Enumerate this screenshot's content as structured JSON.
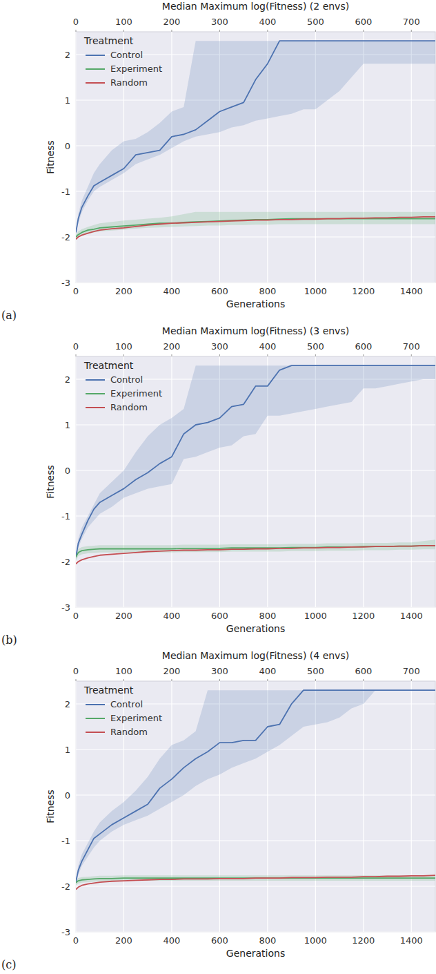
{
  "chart_data": [
    {
      "type": "line",
      "title": "Median Maximum log(Fitness) (2 envs)",
      "panel_label": "(a)",
      "x_label": "Generations",
      "y_label": "Fitness",
      "xlim": [
        0,
        1500
      ],
      "xticks": [
        0,
        200,
        400,
        600,
        800,
        1000,
        1200,
        1400
      ],
      "x2lim": [
        0,
        750
      ],
      "x2ticks": [
        0,
        100,
        200,
        300,
        400,
        500,
        600,
        700
      ],
      "ylim": [
        -3,
        2.5
      ],
      "yticks": [
        -3,
        -2,
        -1,
        0,
        1,
        2
      ],
      "grid": true,
      "legend": "upper left",
      "legend_title": "Treatment",
      "x": [
        0,
        10,
        25,
        50,
        75,
        100,
        150,
        200,
        250,
        300,
        350,
        400,
        450,
        500,
        550,
        600,
        650,
        700,
        750,
        800,
        850,
        900,
        950,
        1000,
        1050,
        1100,
        1150,
        1200,
        1250,
        1300,
        1350,
        1400,
        1450,
        1500
      ],
      "series": [
        {
          "name": "Control",
          "color": "#4c72b0",
          "values": [
            -1.9,
            -1.6,
            -1.35,
            -1.1,
            -0.88,
            -0.8,
            -0.65,
            -0.5,
            -0.2,
            -0.15,
            -0.1,
            0.2,
            0.25,
            0.35,
            0.55,
            0.75,
            0.85,
            0.95,
            1.45,
            1.8,
            2.3,
            2.3,
            2.3,
            2.3,
            2.3,
            2.3,
            2.3,
            2.3,
            2.3,
            2.3,
            2.3,
            2.3,
            2.3,
            2.3
          ],
          "lower": [
            -1.95,
            -1.7,
            -1.45,
            -1.2,
            -1.0,
            -0.9,
            -0.75,
            -0.6,
            -0.4,
            -0.3,
            -0.2,
            -0.05,
            0.1,
            0.2,
            0.25,
            0.3,
            0.4,
            0.45,
            0.55,
            0.6,
            0.65,
            0.7,
            0.8,
            0.8,
            1.0,
            1.2,
            1.5,
            1.8,
            1.8,
            1.8,
            1.8,
            1.8,
            1.8,
            1.8
          ],
          "upper": [
            -1.85,
            -1.5,
            -1.2,
            -0.9,
            -0.6,
            -0.4,
            -0.1,
            0.1,
            0.15,
            0.3,
            0.5,
            0.75,
            0.85,
            2.3,
            2.3,
            2.3,
            2.3,
            2.3,
            2.3,
            2.3,
            2.3,
            2.3,
            2.3,
            2.3,
            2.3,
            2.3,
            2.3,
            2.3,
            2.3,
            2.3,
            2.3,
            2.3,
            2.3,
            2.3
          ]
        },
        {
          "name": "Experiment",
          "color": "#55a868",
          "values": [
            -2.0,
            -1.95,
            -1.9,
            -1.85,
            -1.83,
            -1.8,
            -1.78,
            -1.76,
            -1.74,
            -1.72,
            -1.7,
            -1.7,
            -1.68,
            -1.67,
            -1.66,
            -1.65,
            -1.64,
            -1.63,
            -1.62,
            -1.62,
            -1.61,
            -1.6,
            -1.6,
            -1.6,
            -1.6,
            -1.6,
            -1.6,
            -1.6,
            -1.6,
            -1.6,
            -1.6,
            -1.6,
            -1.6,
            -1.6
          ],
          "lower": [
            -2.05,
            -2.0,
            -1.97,
            -1.93,
            -1.9,
            -1.88,
            -1.86,
            -1.84,
            -1.82,
            -1.8,
            -1.79,
            -1.78,
            -1.77,
            -1.76,
            -1.75,
            -1.75,
            -1.74,
            -1.74,
            -1.73,
            -1.73,
            -1.72,
            -1.72,
            -1.72,
            -1.72,
            -1.72,
            -1.72,
            -1.72,
            -1.72,
            -1.72,
            -1.72,
            -1.72,
            -1.72,
            -1.72,
            -1.72
          ],
          "upper": [
            -1.95,
            -1.88,
            -1.83,
            -1.78,
            -1.74,
            -1.7,
            -1.67,
            -1.64,
            -1.62,
            -1.6,
            -1.58,
            -1.55,
            -1.5,
            -1.45,
            -1.45,
            -1.45,
            -1.45,
            -1.45,
            -1.45,
            -1.45,
            -1.45,
            -1.45,
            -1.45,
            -1.45,
            -1.45,
            -1.45,
            -1.45,
            -1.45,
            -1.45,
            -1.45,
            -1.45,
            -1.45,
            -1.45,
            -1.45
          ]
        },
        {
          "name": "Random",
          "color": "#c44e52",
          "values": [
            -2.05,
            -2.0,
            -1.96,
            -1.92,
            -1.88,
            -1.85,
            -1.82,
            -1.8,
            -1.77,
            -1.74,
            -1.72,
            -1.7,
            -1.69,
            -1.68,
            -1.67,
            -1.66,
            -1.65,
            -1.64,
            -1.63,
            -1.63,
            -1.62,
            -1.62,
            -1.61,
            -1.61,
            -1.6,
            -1.6,
            -1.59,
            -1.59,
            -1.58,
            -1.58,
            -1.57,
            -1.57,
            -1.56,
            -1.56
          ]
        }
      ]
    },
    {
      "type": "line",
      "title": "Median Maximum log(Fitness) (3 envs)",
      "panel_label": "(b)",
      "x_label": "Generations",
      "y_label": "Fitness",
      "xlim": [
        0,
        1500
      ],
      "xticks": [
        0,
        200,
        400,
        600,
        800,
        1000,
        1200,
        1400
      ],
      "x2lim": [
        0,
        750
      ],
      "x2ticks": [
        0,
        100,
        200,
        300,
        400,
        500,
        600,
        700
      ],
      "ylim": [
        -3,
        2.5
      ],
      "yticks": [
        -3,
        -2,
        -1,
        0,
        1,
        2
      ],
      "grid": true,
      "legend": "upper left",
      "legend_title": "Treatment",
      "x": [
        0,
        10,
        25,
        50,
        75,
        100,
        150,
        200,
        250,
        300,
        350,
        400,
        450,
        500,
        550,
        600,
        650,
        700,
        750,
        800,
        850,
        900,
        950,
        1000,
        1050,
        1100,
        1150,
        1200,
        1250,
        1300,
        1350,
        1400,
        1450,
        1500
      ],
      "series": [
        {
          "name": "Control",
          "color": "#4c72b0",
          "values": [
            -1.9,
            -1.6,
            -1.4,
            -1.1,
            -0.85,
            -0.7,
            -0.55,
            -0.4,
            -0.2,
            -0.05,
            0.15,
            0.3,
            0.8,
            1.0,
            1.05,
            1.15,
            1.4,
            1.45,
            1.85,
            1.85,
            2.2,
            2.3,
            2.3,
            2.3,
            2.3,
            2.3,
            2.3,
            2.3,
            2.3,
            2.3,
            2.3,
            2.3,
            2.3,
            2.3
          ],
          "lower": [
            -1.95,
            -1.7,
            -1.5,
            -1.25,
            -1.1,
            -0.95,
            -0.8,
            -0.6,
            -0.5,
            -0.4,
            -0.35,
            -0.3,
            0.25,
            0.3,
            0.4,
            0.5,
            0.55,
            0.75,
            0.8,
            1.2,
            1.2,
            1.25,
            1.3,
            1.35,
            1.4,
            1.45,
            1.5,
            1.8,
            1.8,
            1.85,
            1.9,
            1.95,
            2.0,
            2.0
          ],
          "upper": [
            -1.85,
            -1.5,
            -1.25,
            -1.0,
            -0.75,
            -0.5,
            -0.25,
            0.0,
            0.4,
            0.75,
            1.0,
            1.15,
            1.35,
            2.3,
            2.3,
            2.3,
            2.3,
            2.3,
            2.3,
            2.3,
            2.3,
            2.3,
            2.3,
            2.3,
            2.3,
            2.3,
            2.3,
            2.3,
            2.3,
            2.3,
            2.3,
            2.3,
            2.3,
            2.3
          ]
        },
        {
          "name": "Experiment",
          "color": "#55a868",
          "values": [
            -1.9,
            -1.8,
            -1.76,
            -1.74,
            -1.73,
            -1.72,
            -1.72,
            -1.72,
            -1.72,
            -1.72,
            -1.72,
            -1.72,
            -1.71,
            -1.71,
            -1.71,
            -1.71,
            -1.7,
            -1.7,
            -1.7,
            -1.7,
            -1.7,
            -1.69,
            -1.69,
            -1.69,
            -1.68,
            -1.68,
            -1.68,
            -1.67,
            -1.67,
            -1.67,
            -1.66,
            -1.66,
            -1.65,
            -1.65
          ],
          "lower": [
            -1.98,
            -1.88,
            -1.84,
            -1.82,
            -1.81,
            -1.8,
            -1.8,
            -1.8,
            -1.8,
            -1.8,
            -1.8,
            -1.8,
            -1.79,
            -1.79,
            -1.79,
            -1.79,
            -1.78,
            -1.78,
            -1.78,
            -1.78,
            -1.78,
            -1.77,
            -1.77,
            -1.77,
            -1.76,
            -1.76,
            -1.76,
            -1.75,
            -1.75,
            -1.75,
            -1.74,
            -1.74,
            -1.73,
            -1.73
          ],
          "upper": [
            -1.82,
            -1.72,
            -1.68,
            -1.66,
            -1.65,
            -1.64,
            -1.64,
            -1.64,
            -1.64,
            -1.64,
            -1.64,
            -1.64,
            -1.63,
            -1.63,
            -1.63,
            -1.63,
            -1.62,
            -1.62,
            -1.62,
            -1.62,
            -1.62,
            -1.61,
            -1.61,
            -1.61,
            -1.6,
            -1.6,
            -1.6,
            -1.59,
            -1.59,
            -1.59,
            -1.58,
            -1.58,
            -1.55,
            -1.52
          ]
        },
        {
          "name": "Random",
          "color": "#c44e52",
          "values": [
            -2.05,
            -2.0,
            -1.96,
            -1.92,
            -1.89,
            -1.86,
            -1.84,
            -1.82,
            -1.8,
            -1.78,
            -1.77,
            -1.76,
            -1.75,
            -1.75,
            -1.74,
            -1.74,
            -1.73,
            -1.73,
            -1.72,
            -1.72,
            -1.71,
            -1.71,
            -1.7,
            -1.7,
            -1.69,
            -1.69,
            -1.68,
            -1.68,
            -1.67,
            -1.67,
            -1.66,
            -1.66,
            -1.65,
            -1.65
          ]
        }
      ]
    },
    {
      "type": "line",
      "title": "Median Maximum log(Fitness) (4 envs)",
      "panel_label": "(c)",
      "x_label": "Generations",
      "y_label": "Fitness",
      "xlim": [
        0,
        1500
      ],
      "xticks": [
        0,
        200,
        400,
        600,
        800,
        1000,
        1200,
        1400
      ],
      "x2lim": [
        0,
        750
      ],
      "x2ticks": [
        0,
        100,
        200,
        300,
        400,
        500,
        600,
        700
      ],
      "ylim": [
        -3,
        2.5
      ],
      "yticks": [
        -3,
        -2,
        -1,
        0,
        1,
        2
      ],
      "grid": true,
      "legend": "upper left",
      "legend_title": "Treatment",
      "x": [
        0,
        10,
        25,
        50,
        75,
        100,
        150,
        200,
        250,
        300,
        350,
        400,
        450,
        500,
        550,
        600,
        650,
        700,
        750,
        800,
        850,
        900,
        950,
        1000,
        1050,
        1100,
        1150,
        1200,
        1250,
        1300,
        1350,
        1400,
        1450,
        1500
      ],
      "series": [
        {
          "name": "Control",
          "color": "#4c72b0",
          "values": [
            -1.9,
            -1.65,
            -1.45,
            -1.2,
            -0.95,
            -0.85,
            -0.65,
            -0.5,
            -0.35,
            -0.2,
            0.15,
            0.35,
            0.6,
            0.8,
            0.95,
            1.15,
            1.15,
            1.2,
            1.2,
            1.5,
            1.55,
            2.0,
            2.3,
            2.3,
            2.3,
            2.3,
            2.3,
            2.3,
            2.3,
            2.3,
            2.3,
            2.3,
            2.3,
            2.3
          ],
          "lower": [
            -1.95,
            -1.75,
            -1.55,
            -1.35,
            -1.15,
            -1.0,
            -0.8,
            -0.65,
            -0.55,
            -0.45,
            -0.3,
            -0.15,
            0.0,
            0.2,
            0.35,
            0.45,
            0.6,
            0.7,
            0.8,
            0.95,
            1.1,
            1.3,
            1.5,
            1.55,
            1.6,
            1.7,
            1.9,
            2.0,
            2.3,
            2.3,
            2.3,
            2.3,
            2.3,
            2.3
          ],
          "upper": [
            -1.85,
            -1.55,
            -1.3,
            -1.05,
            -0.8,
            -0.6,
            -0.35,
            -0.15,
            0.1,
            0.4,
            0.8,
            1.1,
            1.2,
            1.4,
            2.3,
            2.3,
            2.3,
            2.3,
            2.3,
            2.3,
            2.3,
            2.3,
            2.3,
            2.3,
            2.3,
            2.3,
            2.3,
            2.3,
            2.3,
            2.3,
            2.3,
            2.3,
            2.3,
            2.3
          ]
        },
        {
          "name": "Experiment",
          "color": "#55a868",
          "values": [
            -1.92,
            -1.88,
            -1.86,
            -1.85,
            -1.84,
            -1.83,
            -1.83,
            -1.82,
            -1.82,
            -1.82,
            -1.82,
            -1.82,
            -1.82,
            -1.82,
            -1.82,
            -1.82,
            -1.82,
            -1.82,
            -1.82,
            -1.82,
            -1.82,
            -1.82,
            -1.82,
            -1.82,
            -1.82,
            -1.82,
            -1.82,
            -1.82,
            -1.82,
            -1.82,
            -1.82,
            -1.82,
            -1.82,
            -1.82
          ],
          "lower": [
            -1.98,
            -1.94,
            -1.92,
            -1.91,
            -1.9,
            -1.89,
            -1.89,
            -1.88,
            -1.88,
            -1.88,
            -1.88,
            -1.88,
            -1.88,
            -1.88,
            -1.88,
            -1.88,
            -1.88,
            -1.88,
            -1.88,
            -1.88,
            -1.88,
            -1.88,
            -1.88,
            -1.88,
            -1.88,
            -1.88,
            -1.88,
            -1.88,
            -1.88,
            -1.88,
            -1.88,
            -1.88,
            -1.88,
            -1.88
          ],
          "upper": [
            -1.86,
            -1.82,
            -1.8,
            -1.79,
            -1.78,
            -1.77,
            -1.77,
            -1.76,
            -1.76,
            -1.76,
            -1.76,
            -1.76,
            -1.76,
            -1.76,
            -1.76,
            -1.76,
            -1.76,
            -1.76,
            -1.76,
            -1.76,
            -1.76,
            -1.76,
            -1.76,
            -1.76,
            -1.76,
            -1.76,
            -1.76,
            -1.76,
            -1.76,
            -1.76,
            -1.76,
            -1.76,
            -1.76,
            -1.76
          ]
        },
        {
          "name": "Random",
          "color": "#c44e52",
          "values": [
            -2.07,
            -2.02,
            -1.98,
            -1.95,
            -1.93,
            -1.91,
            -1.89,
            -1.88,
            -1.87,
            -1.86,
            -1.85,
            -1.85,
            -1.84,
            -1.84,
            -1.84,
            -1.83,
            -1.83,
            -1.83,
            -1.82,
            -1.82,
            -1.82,
            -1.81,
            -1.81,
            -1.81,
            -1.8,
            -1.8,
            -1.8,
            -1.79,
            -1.79,
            -1.78,
            -1.78,
            -1.77,
            -1.77,
            -1.76
          ]
        }
      ]
    }
  ]
}
